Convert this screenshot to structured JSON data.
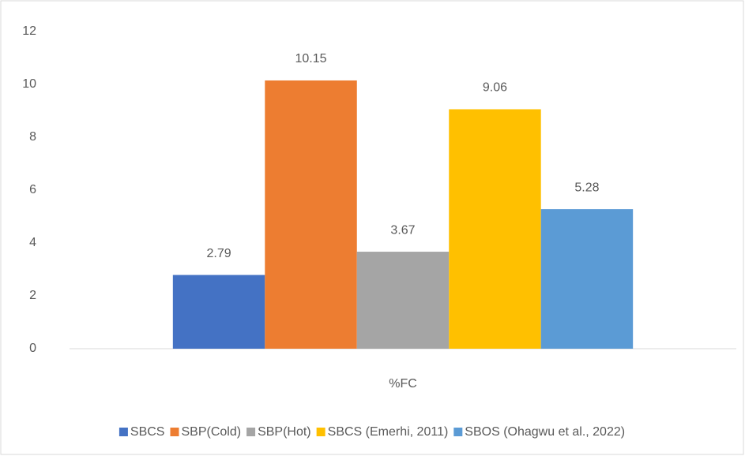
{
  "chart_data": {
    "type": "bar",
    "categories": [
      "%FC"
    ],
    "series": [
      {
        "name": "SBCS",
        "color": "#4472c4",
        "values": [
          2.79
        ]
      },
      {
        "name": "SBP(Cold)",
        "color": "#ed7d31",
        "values": [
          10.15
        ]
      },
      {
        "name": "SBP(Hot)",
        "color": "#a5a5a5",
        "values": [
          3.67
        ]
      },
      {
        "name": "SBCS (Emerhi, 2011)",
        "color": "#ffc000",
        "values": [
          9.06
        ]
      },
      {
        "name": "SBOS (Ohagwu et al., 2022)",
        "color": "#5b9bd5",
        "values": [
          5.28
        ]
      }
    ],
    "ylim": [
      0,
      12
    ],
    "yticks": [
      0,
      2,
      4,
      6,
      8,
      10,
      12
    ],
    "grid": false,
    "data_labels": true,
    "legend": "bottom"
  }
}
